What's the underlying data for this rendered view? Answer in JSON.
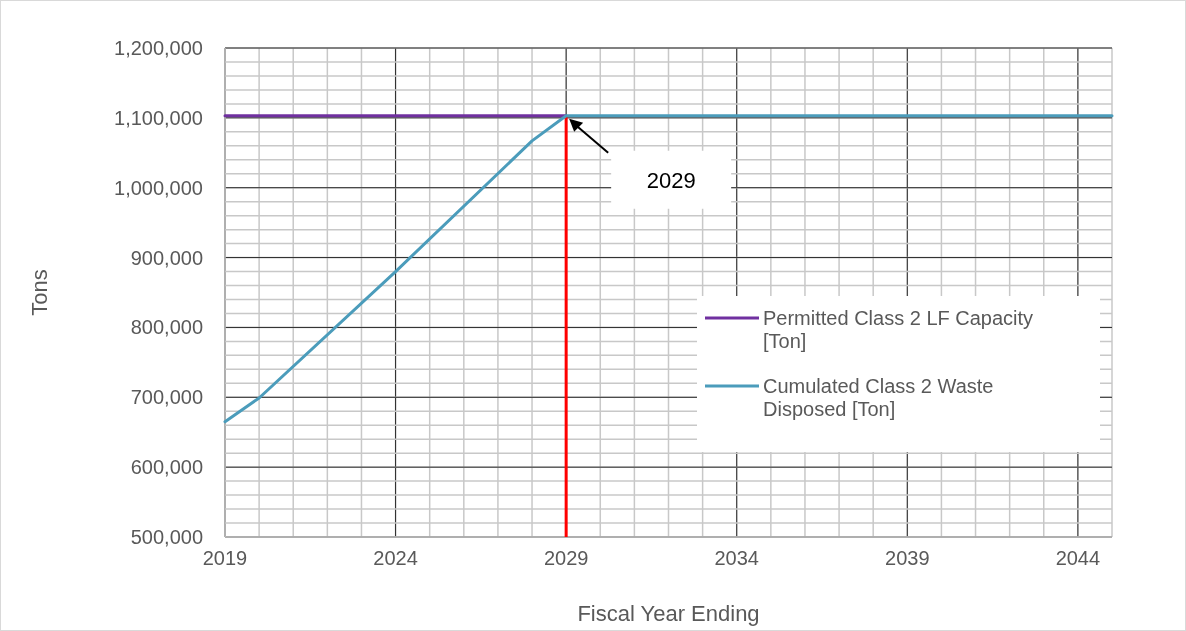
{
  "chart_data": {
    "type": "line",
    "xlabel": "Fiscal Year Ending",
    "ylabel": "Tons",
    "xlim": [
      2019,
      2045
    ],
    "xticks": [
      2019,
      2024,
      2029,
      2034,
      2039,
      2044
    ],
    "ylim": [
      500000,
      1200000
    ],
    "yticks": [
      {
        "value": 500000,
        "label": "500,000"
      },
      {
        "value": 600000,
        "label": "600,000"
      },
      {
        "value": 700000,
        "label": "700,000"
      },
      {
        "value": 800000,
        "label": "800,000"
      },
      {
        "value": 900000,
        "label": "900,000"
      },
      {
        "value": 1000000,
        "label": "1,000,000"
      },
      {
        "value": 1100000,
        "label": "1,100,000"
      },
      {
        "value": 1200000,
        "label": "1,200,000"
      }
    ],
    "grid": true,
    "legend": "bottom right",
    "marker": "none",
    "line_style": "solid",
    "series": [
      {
        "name": "Permitted Class 2 LF Capacity [Ton]",
        "color": "#7030a0",
        "x": [
          2019,
          2029
        ],
        "values": [
          1103000,
          1103000
        ]
      },
      {
        "name": "Cumulated Class 2 Waste Disposed [Ton]",
        "color": "#4b9cbb",
        "x": [
          2019,
          2020,
          2024,
          2028,
          2029,
          2045
        ],
        "values": [
          665000,
          699000,
          880000,
          1067000,
          1103000,
          1103000
        ]
      }
    ],
    "ref_lines": [
      {
        "axis": "x",
        "value": 2029,
        "color": "#ff0000"
      }
    ],
    "annotations": [
      "2029"
    ]
  }
}
